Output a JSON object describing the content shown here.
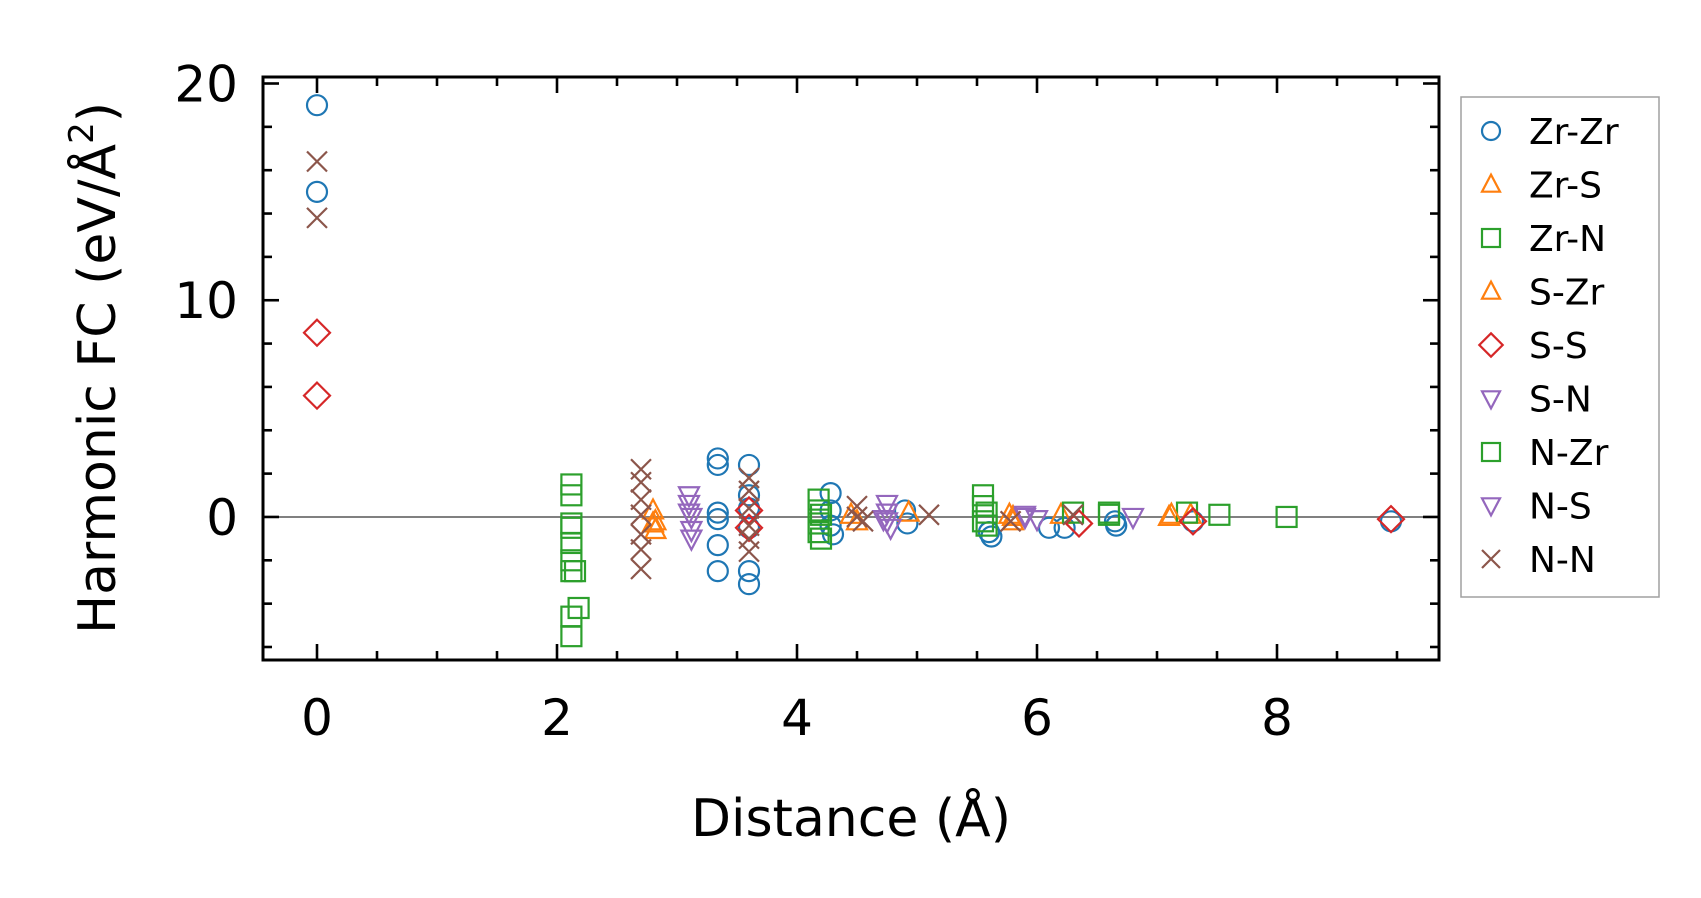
{
  "chart_data": {
    "type": "scatter",
    "xlabel": "Distance (Å)",
    "ylabel_main": "Harmonic FC (eV/Å",
    "ylabel_sup": "2",
    "ylabel_close": ")",
    "xlim": [
      -0.45,
      9.35
    ],
    "ylim": [
      -6.6,
      20.3
    ],
    "x_ticks": [
      0,
      2,
      4,
      6,
      8
    ],
    "x_tick_labels": [
      "0",
      "2",
      "4",
      "6",
      "8"
    ],
    "y_ticks": [
      0,
      10,
      20
    ],
    "y_tick_labels": [
      "0",
      "10",
      "20"
    ],
    "x_minor_step": 0.5,
    "y_minor_step": 2,
    "zero_line": true,
    "grid": false,
    "legend_position": "outside-right",
    "series": [
      {
        "name": "Zr-Zr",
        "marker": "circle",
        "color": "#1f77b4",
        "x": [
          0,
          0,
          3.34,
          3.34,
          3.34,
          3.34,
          3.34,
          3.34,
          3.6,
          3.6,
          3.6,
          3.6,
          3.6,
          3.6,
          4.28,
          4.28,
          4.28,
          4.3,
          4.9,
          4.92,
          5.6,
          5.62,
          6.1,
          6.23,
          6.65,
          6.66,
          7.3,
          8.95
        ],
        "y": [
          19.0,
          15.0,
          2.7,
          2.4,
          0.2,
          -0.1,
          -1.3,
          -2.5,
          2.4,
          1.0,
          0.4,
          -0.5,
          -2.5,
          -3.1,
          1.1,
          0.3,
          -0.4,
          -0.8,
          0.3,
          -0.3,
          -0.7,
          -0.9,
          -0.5,
          -0.5,
          -0.2,
          -0.4,
          -0.2,
          -0.2
        ]
      },
      {
        "name": "Zr-S",
        "marker": "triangle-up",
        "color": "#ff7f0e",
        "x": [
          2.8,
          2.8,
          2.82,
          4.45,
          4.93,
          5.77,
          5.8,
          6.2,
          7.1,
          7.28
        ],
        "y": [
          0.3,
          -0.3,
          -0.6,
          0.1,
          0.2,
          0.1,
          0.0,
          0.1,
          0.0,
          0.1
        ]
      },
      {
        "name": "Zr-N",
        "marker": "square",
        "color": "#2ca02c",
        "x": [
          2.12,
          2.12,
          2.12,
          2.12,
          2.12,
          2.12,
          2.15,
          2.18,
          2.12,
          2.12,
          4.18,
          4.18,
          4.18,
          4.18,
          4.2,
          5.55,
          5.55,
          5.55,
          5.58,
          6.3,
          6.6,
          7.25,
          7.52,
          8.08
        ],
        "y": [
          1.5,
          1.0,
          -0.5,
          -1.2,
          -2.0,
          -2.5,
          -2.5,
          -4.2,
          -4.6,
          -5.5,
          0.8,
          0.3,
          -0.3,
          -0.7,
          -1.0,
          1.0,
          0.5,
          -0.2,
          -0.4,
          0.2,
          0.2,
          0.2,
          0.1,
          0.0
        ]
      },
      {
        "name": "S-Zr",
        "marker": "triangle-up",
        "color": "#ff7f0e",
        "x": [
          2.82,
          4.5,
          5.8,
          7.12
        ],
        "y": [
          -0.2,
          -0.2,
          -0.2,
          0.1
        ]
      },
      {
        "name": "S-S",
        "marker": "diamond",
        "color": "#d62728",
        "x": [
          0,
          0,
          3.6,
          3.6,
          6.35,
          7.3,
          8.95
        ],
        "y": [
          8.5,
          5.6,
          0.3,
          -0.5,
          -0.3,
          -0.2,
          -0.1
        ]
      },
      {
        "name": "S-N",
        "marker": "triangle-down",
        "color": "#9467bd",
        "x": [
          3.1,
          3.1,
          3.12,
          3.12,
          3.12,
          4.75,
          4.75,
          4.75,
          4.78,
          5.9,
          6.0,
          6.8
        ],
        "y": [
          1.0,
          0.6,
          0.0,
          -0.6,
          -1.0,
          0.6,
          0.2,
          -0.2,
          -0.5,
          0.0,
          -0.1,
          0.0
        ]
      },
      {
        "name": "N-Zr",
        "marker": "square",
        "color": "#2ca02c",
        "x": [
          2.12,
          4.2,
          5.58,
          6.6
        ],
        "y": [
          -0.3,
          0.1,
          0.2,
          0.1
        ]
      },
      {
        "name": "N-S",
        "marker": "triangle-down",
        "color": "#9467bd",
        "x": [
          3.1,
          4.72,
          5.9
        ],
        "y": [
          0.2,
          -0.1,
          0.1
        ]
      },
      {
        "name": "N-N",
        "marker": "x",
        "color": "#8c564b",
        "x": [
          0,
          0,
          2.7,
          2.7,
          2.7,
          2.7,
          2.7,
          2.7,
          2.7,
          3.6,
          3.6,
          3.6,
          3.6,
          3.6,
          3.6,
          4.5,
          4.5,
          4.55,
          5.1,
          5.78,
          6.3
        ],
        "y": [
          16.4,
          13.8,
          2.2,
          1.6,
          0.8,
          0.1,
          -0.8,
          -1.5,
          -2.4,
          1.8,
          1.2,
          0.4,
          -0.4,
          -1.0,
          -1.6,
          0.5,
          0.0,
          -0.2,
          0.1,
          -0.2,
          0.1
        ]
      }
    ]
  }
}
